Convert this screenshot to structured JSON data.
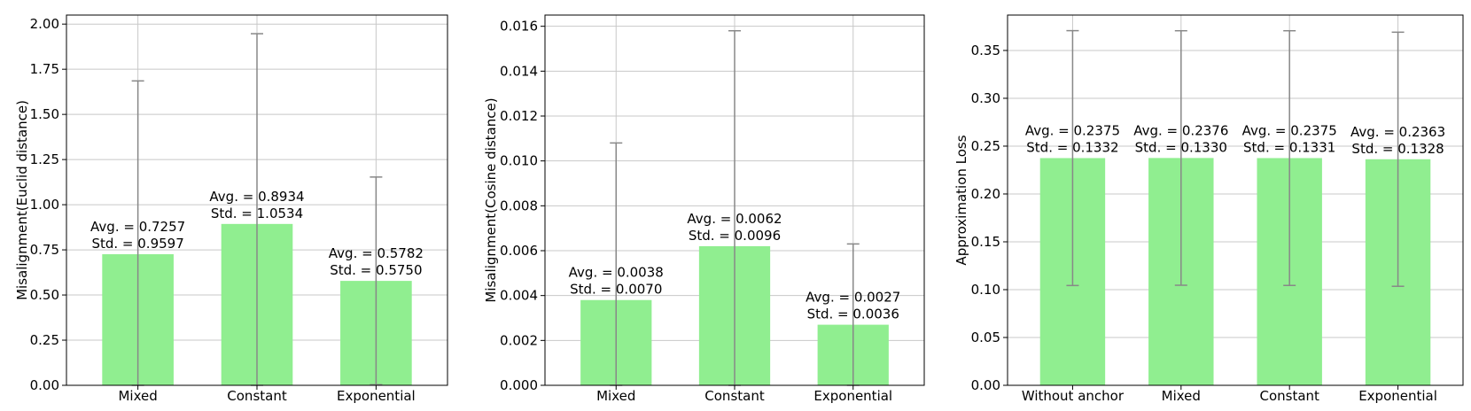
{
  "chart_data": [
    {
      "type": "bar",
      "categories": [
        "Mixed",
        "Constant",
        "Exponential"
      ],
      "values": [
        0.7257,
        0.8934,
        0.5782
      ],
      "errors": [
        0.9597,
        1.0534,
        0.575
      ],
      "annotations": [
        [
          "Avg. = 0.7257",
          "Std. = 0.9597"
        ],
        [
          "Avg. = 0.8934",
          "Std. = 1.0534"
        ],
        [
          "Avg. = 0.5782",
          "Std. = 0.5750"
        ]
      ],
      "ylabel": "Misalignment(Euclid distance)",
      "ylim": [
        0,
        2.05
      ],
      "yticks": [
        0,
        0.25,
        0.5,
        0.75,
        1.0,
        1.25,
        1.5,
        1.75,
        2.0
      ],
      "ytick_labels": [
        "0.00",
        "0.25",
        "0.50",
        "0.75",
        "1.00",
        "1.25",
        "1.50",
        "1.75",
        "2.00"
      ],
      "grid": true,
      "bar_color": "#90ee90",
      "error_color": "#888888"
    },
    {
      "type": "bar",
      "categories": [
        "Mixed",
        "Constant",
        "Exponential"
      ],
      "values": [
        0.0038,
        0.0062,
        0.0027
      ],
      "errors": [
        0.007,
        0.0096,
        0.0036
      ],
      "annotations": [
        [
          "Avg. = 0.0038",
          "Std. = 0.0070"
        ],
        [
          "Avg. = 0.0062",
          "Std. = 0.0096"
        ],
        [
          "Avg. = 0.0027",
          "Std. = 0.0036"
        ]
      ],
      "ylabel": "Misalignment(Cosine distance)",
      "ylim": [
        0,
        0.0165
      ],
      "yticks": [
        0,
        0.002,
        0.004,
        0.006,
        0.008,
        0.01,
        0.012,
        0.014,
        0.016
      ],
      "ytick_labels": [
        "0.000",
        "0.002",
        "0.004",
        "0.006",
        "0.008",
        "0.010",
        "0.012",
        "0.014",
        "0.016"
      ],
      "grid": true,
      "bar_color": "#90ee90",
      "error_color": "#888888"
    },
    {
      "type": "bar",
      "categories": [
        "Without anchor",
        "Mixed",
        "Constant",
        "Exponential"
      ],
      "values": [
        0.2375,
        0.2376,
        0.2375,
        0.2363
      ],
      "errors": [
        0.1332,
        0.133,
        0.1331,
        0.1328
      ],
      "annotations": [
        [
          "Avg. = 0.2375",
          "Std. = 0.1332"
        ],
        [
          "Avg. = 0.2376",
          "Std. = 0.1330"
        ],
        [
          "Avg. = 0.2375",
          "Std. = 0.1331"
        ],
        [
          "Avg. = 0.2363",
          "Std. = 0.1328"
        ]
      ],
      "ylabel": "Approximation Loss",
      "ylim": [
        0,
        0.387
      ],
      "yticks": [
        0,
        0.05,
        0.1,
        0.15,
        0.2,
        0.25,
        0.3,
        0.35
      ],
      "ytick_labels": [
        "0.00",
        "0.05",
        "0.10",
        "0.15",
        "0.20",
        "0.25",
        "0.30",
        "0.35"
      ],
      "grid": true,
      "bar_color": "#90ee90",
      "error_color": "#888888"
    }
  ]
}
